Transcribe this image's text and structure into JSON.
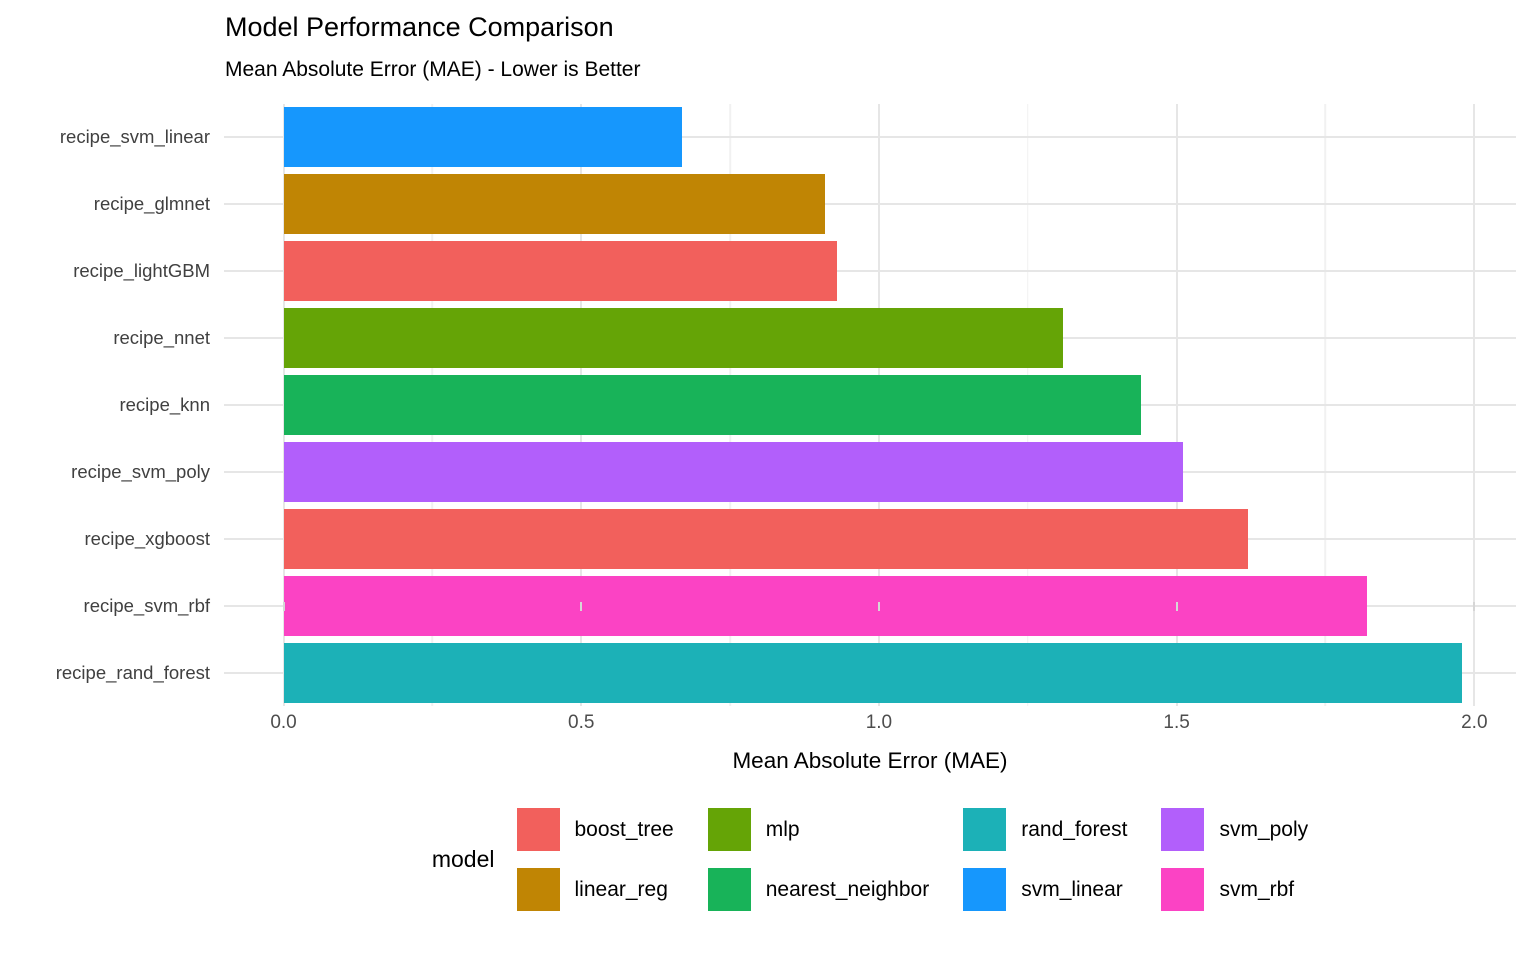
{
  "title": "Model Performance Comparison",
  "subtitle": "Mean Absolute Error (MAE) - Lower is Better",
  "chart_data": {
    "type": "bar",
    "orientation": "horizontal",
    "title": "Model Performance Comparison",
    "subtitle": "Mean Absolute Error (MAE) - Lower is Better",
    "xlabel": "Mean Absolute Error (MAE)",
    "ylabel": "",
    "xlim": [
      -0.1,
      2.07
    ],
    "x_major_ticks": [
      0.0,
      0.5,
      1.0,
      1.5,
      2.0
    ],
    "x_tick_labels": [
      "0.0",
      "0.5",
      "1.0",
      "1.5",
      "2.0"
    ],
    "x_minor_ticks": [
      0.25,
      0.75,
      1.25,
      1.75
    ],
    "grid": true,
    "bar_start": 0.0,
    "bars": [
      {
        "category": "recipe_svm_linear",
        "model": "svm_linear",
        "value": 0.67
      },
      {
        "category": "recipe_glmnet",
        "model": "linear_reg",
        "value": 0.91
      },
      {
        "category": "recipe_lightGBM",
        "model": "boost_tree",
        "value": 0.93
      },
      {
        "category": "recipe_nnet",
        "model": "mlp",
        "value": 1.31
      },
      {
        "category": "recipe_knn",
        "model": "nearest_neighbor",
        "value": 1.44
      },
      {
        "category": "recipe_svm_poly",
        "model": "svm_poly",
        "value": 1.51
      },
      {
        "category": "recipe_xgboost",
        "model": "boost_tree",
        "value": 1.62
      },
      {
        "category": "recipe_svm_rbf",
        "model": "svm_rbf",
        "value": 1.82
      },
      {
        "category": "recipe_rand_forest",
        "model": "rand_forest",
        "value": 1.98
      }
    ],
    "legend": {
      "title": "model",
      "position": "bottom",
      "items": [
        {
          "label": "boost_tree",
          "color": "#F2605C"
        },
        {
          "label": "linear_reg",
          "color": "#C08504"
        },
        {
          "label": "mlp",
          "color": "#65A406"
        },
        {
          "label": "nearest_neighbor",
          "color": "#18B359"
        },
        {
          "label": "rand_forest",
          "color": "#1CB1B7"
        },
        {
          "label": "svm_linear",
          "color": "#1697FD"
        },
        {
          "label": "svm_poly",
          "color": "#B25FFB"
        },
        {
          "label": "svm_rbf",
          "color": "#FB43C4"
        }
      ]
    },
    "colors": {
      "grid_major": "#E6E6E6",
      "grid_minor": "#F1F1F1",
      "axis_text": "#4D4D4D",
      "tick_mark": "#D6D6D6",
      "text": "#000000",
      "background": "#FFFFFF"
    }
  }
}
